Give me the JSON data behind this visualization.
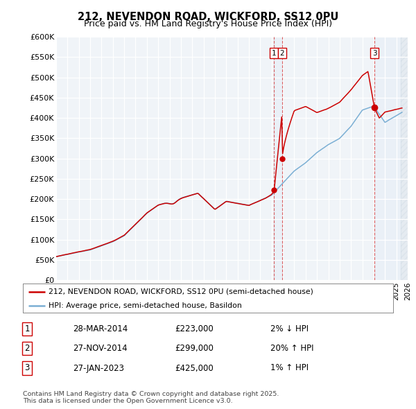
{
  "title": "212, NEVENDON ROAD, WICKFORD, SS12 0PU",
  "subtitle": "Price paid vs. HM Land Registry's House Price Index (HPI)",
  "ylabel_ticks": [
    "£0",
    "£50K",
    "£100K",
    "£150K",
    "£200K",
    "£250K",
    "£300K",
    "£350K",
    "£400K",
    "£450K",
    "£500K",
    "£550K",
    "£600K"
  ],
  "ytick_values": [
    0,
    50000,
    100000,
    150000,
    200000,
    250000,
    300000,
    350000,
    400000,
    450000,
    500000,
    550000,
    600000
  ],
  "x_start_year": 1995,
  "x_end_year": 2026,
  "hpi_color": "#7bafd4",
  "price_color": "#cc0000",
  "sale1_date": 2014.22,
  "sale1_price": 223000,
  "sale2_date": 2014.92,
  "sale2_price": 299000,
  "sale3_date": 2023.07,
  "sale3_price": 425000,
  "vline_color": "#cc0000",
  "shade_color": "#dce8f5",
  "legend_box_label1": "212, NEVENDON ROAD, WICKFORD, SS12 0PU (semi-detached house)",
  "legend_box_label2": "HPI: Average price, semi-detached house, Basildon",
  "table_entries": [
    {
      "num": "1",
      "date": "28-MAR-2014",
      "price": "£223,000",
      "pct": "2% ↓ HPI"
    },
    {
      "num": "2",
      "date": "27-NOV-2014",
      "price": "£299,000",
      "pct": "20% ↑ HPI"
    },
    {
      "num": "3",
      "date": "27-JAN-2023",
      "price": "£425,000",
      "pct": "1% ↑ HPI"
    }
  ],
  "footer": "Contains HM Land Registry data © Crown copyright and database right 2025.\nThis data is licensed under the Open Government Licence v3.0.",
  "bg_color": "#ffffff",
  "plot_bg_color": "#f0f4f8"
}
